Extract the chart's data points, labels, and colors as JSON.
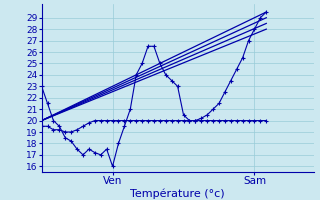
{
  "background_color": "#cce8f0",
  "grid_color": "#99ccd9",
  "line_color": "#0000aa",
  "title": "Température (°c)",
  "ylabel_vals": [
    16,
    17,
    18,
    19,
    20,
    21,
    22,
    23,
    24,
    25,
    26,
    27,
    28,
    29
  ],
  "ylim": [
    15.5,
    30.2
  ],
  "xlim": [
    0,
    46
  ],
  "ven_x": 12,
  "sam_x": 36,
  "series1_x": [
    0,
    1,
    2,
    3,
    4,
    5,
    6,
    7,
    8,
    9,
    10,
    11,
    12,
    13,
    14,
    15,
    16,
    17,
    18,
    19,
    20,
    21,
    22,
    23,
    24,
    25,
    26,
    27,
    28,
    29,
    30,
    31,
    32,
    33,
    34,
    35,
    36,
    37,
    38
  ],
  "series1_y": [
    23,
    21.5,
    20,
    19.5,
    18.5,
    18.2,
    17.5,
    17.0,
    17.5,
    17.2,
    17.0,
    17.5,
    16.0,
    18.0,
    19.5,
    21.0,
    24.0,
    25.0,
    26.5,
    26.5,
    25.0,
    24.0,
    23.5,
    23.0,
    20.5,
    20.0,
    20.0,
    20.2,
    20.5,
    21.0,
    21.5,
    22.5,
    23.5,
    24.5,
    25.5,
    27.0,
    28.0,
    29.0,
    29.5
  ],
  "series2_x": [
    0,
    1,
    2,
    3,
    4,
    5,
    6,
    7,
    8,
    9,
    10,
    11,
    12,
    13,
    14,
    15,
    16,
    17,
    18,
    19,
    20,
    21,
    22,
    23,
    24,
    25,
    26,
    27,
    28,
    29,
    30,
    31,
    32,
    33,
    34,
    35,
    36,
    37,
    38
  ],
  "series2_y": [
    19.5,
    19.5,
    19.2,
    19.2,
    19.0,
    19.0,
    19.2,
    19.5,
    19.8,
    20.0,
    20.0,
    20.0,
    20.0,
    20.0,
    20.0,
    20.0,
    20.0,
    20.0,
    20.0,
    20.0,
    20.0,
    20.0,
    20.0,
    20.0,
    20.0,
    20.0,
    20.0,
    20.0,
    20.0,
    20.0,
    20.0,
    20.0,
    20.0,
    20.0,
    20.0,
    20.0,
    20.0,
    20.0,
    20.0
  ],
  "diag_lines": [
    {
      "x": [
        0,
        38
      ],
      "y": [
        20.0,
        29.5
      ]
    },
    {
      "x": [
        0,
        38
      ],
      "y": [
        20.0,
        28.5
      ]
    },
    {
      "x": [
        0,
        38
      ],
      "y": [
        20.0,
        29.0
      ]
    },
    {
      "x": [
        0,
        38
      ],
      "y": [
        20.0,
        28.0
      ]
    }
  ]
}
